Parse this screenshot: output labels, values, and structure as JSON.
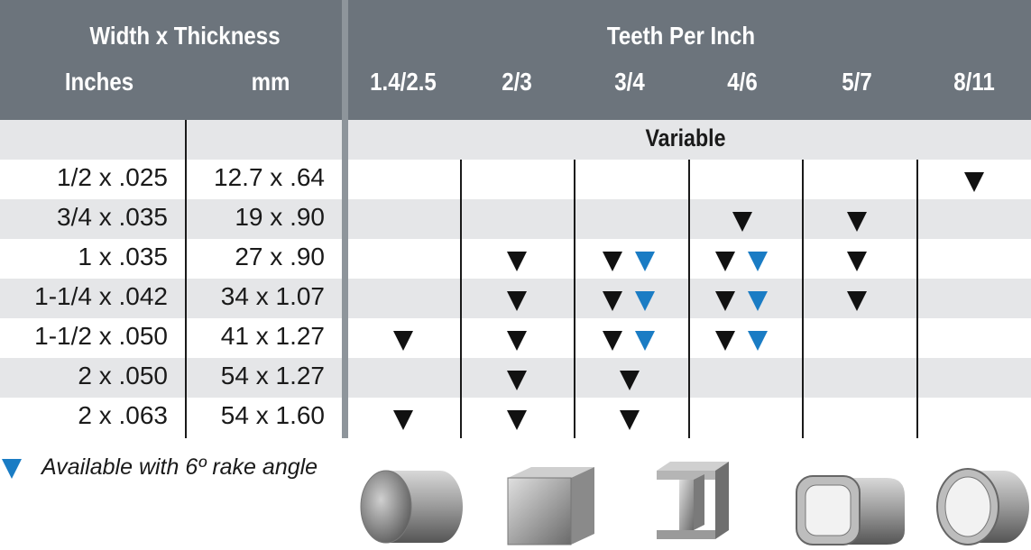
{
  "header": {
    "width_thickness": "Width x Thickness",
    "inches": "Inches",
    "mm": "mm",
    "tpi": "Teeth Per Inch",
    "tpi_columns": [
      "1.4/2.5",
      "2/3",
      "3/4",
      "4/6",
      "5/7",
      "8/11"
    ],
    "variable": "Variable"
  },
  "rows": [
    {
      "inches": "1/2 x .025",
      "mm": "12.7 x .64",
      "marks": [
        [],
        [],
        [],
        [],
        [],
        [
          "black"
        ]
      ]
    },
    {
      "inches": "3/4 x .035",
      "mm": "19 x .90",
      "marks": [
        [],
        [],
        [],
        [
          "black"
        ],
        [
          "black"
        ],
        []
      ]
    },
    {
      "inches": "1 x .035",
      "mm": "27 x .90",
      "marks": [
        [],
        [
          "black"
        ],
        [
          "black",
          "blue"
        ],
        [
          "black",
          "blue"
        ],
        [
          "black"
        ],
        []
      ]
    },
    {
      "inches": "1-1/4 x .042",
      "mm": "34 x 1.07",
      "marks": [
        [],
        [
          "black"
        ],
        [
          "black",
          "blue"
        ],
        [
          "black",
          "blue"
        ],
        [
          "black"
        ],
        []
      ]
    },
    {
      "inches": "1-1/2 x .050",
      "mm": "41 x 1.27",
      "marks": [
        [
          "black"
        ],
        [
          "black"
        ],
        [
          "black",
          "blue"
        ],
        [
          "black",
          "blue"
        ],
        [],
        []
      ]
    },
    {
      "inches": "2 x .050",
      "mm": "54 x 1.27",
      "marks": [
        [],
        [
          "black"
        ],
        [
          "black"
        ],
        [],
        [],
        []
      ]
    },
    {
      "inches": "2 x .063",
      "mm": "54 x 1.60",
      "marks": [
        [
          "black"
        ],
        [
          "black"
        ],
        [
          "black"
        ],
        [],
        [],
        []
      ]
    }
  ],
  "legend": {
    "text": "Available with 6º rake angle",
    "color": "#1a7cc4"
  },
  "shapes": [
    "solid-round-bar-icon",
    "solid-square-bar-icon",
    "i-beam-icon",
    "rectangular-tube-icon",
    "round-tube-icon"
  ],
  "colors": {
    "header_bg": "#6c747c",
    "band_bg": "#e5e6e8",
    "black_mark": "#111111",
    "blue_mark": "#1a7cc4"
  }
}
